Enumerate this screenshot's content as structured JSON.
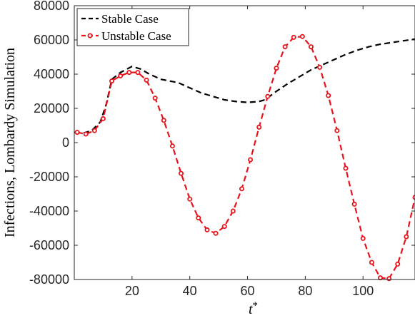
{
  "chart_data": {
    "type": "line",
    "xlabel": "t*",
    "ylabel": "Infections, Lombardy Simulation",
    "xlim": [
      0,
      118
    ],
    "ylim": [
      -80000,
      80000
    ],
    "xticks": [
      20,
      40,
      60,
      80,
      100
    ],
    "yticks": [
      -80000,
      -60000,
      -40000,
      -20000,
      0,
      20000,
      40000,
      60000,
      80000
    ],
    "grid": false,
    "legend_position": "top-left",
    "series": [
      {
        "name": "Stable Case",
        "color": "#000000",
        "style": "dashed",
        "markers": false,
        "x": [
          0,
          3,
          6,
          9,
          11,
          13,
          16,
          20,
          23,
          26,
          30,
          33,
          36,
          40,
          44,
          48,
          52,
          56,
          60,
          64,
          66,
          70,
          74,
          78,
          82,
          86,
          90,
          94,
          98,
          102,
          106,
          110,
          114,
          118
        ],
        "y": [
          6000,
          5500,
          7000,
          12000,
          22000,
          37000,
          41000,
          44500,
          43000,
          40000,
          37000,
          36000,
          35000,
          32000,
          29000,
          27000,
          25000,
          24000,
          23500,
          24000,
          25000,
          30000,
          34500,
          38500,
          42500,
          45500,
          48500,
          51500,
          54000,
          56000,
          57500,
          58500,
          59500,
          60500
        ]
      },
      {
        "name": "Unstable Case",
        "color": "#e8141c",
        "style": "dashed",
        "markers": true,
        "x": [
          1,
          4,
          7,
          10,
          13,
          16,
          19,
          22,
          25,
          28,
          31,
          34,
          37,
          40,
          43,
          46,
          49,
          52,
          55,
          58,
          61,
          64,
          67,
          70,
          73,
          76,
          79,
          82,
          85,
          88,
          91,
          94,
          97,
          100,
          103,
          106,
          109,
          112,
          115,
          118
        ],
        "y": [
          6000,
          5000,
          7000,
          14000,
          36000,
          39000,
          41000,
          41000,
          36500,
          26000,
          13000,
          -2000,
          -18000,
          -33000,
          -44000,
          -51000,
          -53000,
          -49000,
          -40000,
          -27000,
          -10000,
          9000,
          27000,
          43500,
          56000,
          61500,
          62000,
          56000,
          44000,
          27500,
          7000,
          -15000,
          -36000,
          -56000,
          -70000,
          -79000,
          -79500,
          -71000,
          -55000,
          -32000
        ]
      }
    ]
  }
}
